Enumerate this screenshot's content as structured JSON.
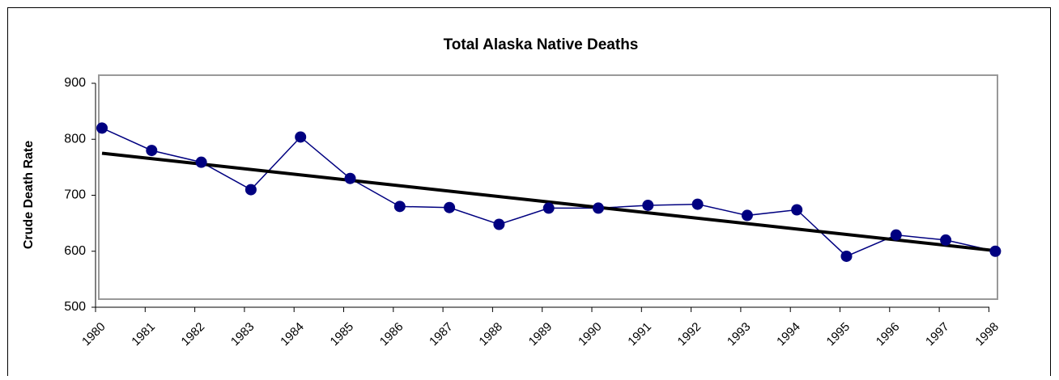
{
  "chart_data": {
    "type": "line",
    "title": "Total Alaska Native Deaths",
    "y_label": "Crude Death Rate",
    "categories": [
      "1980",
      "1981",
      "1982",
      "1983",
      "1984",
      "1985",
      "1986",
      "1987",
      "1988",
      "1989",
      "1990",
      "1991",
      "1992",
      "1993",
      "1994",
      "1995",
      "1996",
      "1997",
      "1998"
    ],
    "series": [
      {
        "color": "#000080",
        "values": [
          820,
          780,
          759,
          710,
          804,
          730,
          680,
          678,
          648,
          677,
          677,
          682,
          684,
          664,
          674,
          591,
          629,
          620,
          600
        ]
      }
    ],
    "trendline": {
      "color": "#000000",
      "start": 775,
      "end": 601
    },
    "ylim": [
      500,
      900
    ],
    "yticks": [
      500,
      600,
      700,
      800,
      900
    ]
  }
}
